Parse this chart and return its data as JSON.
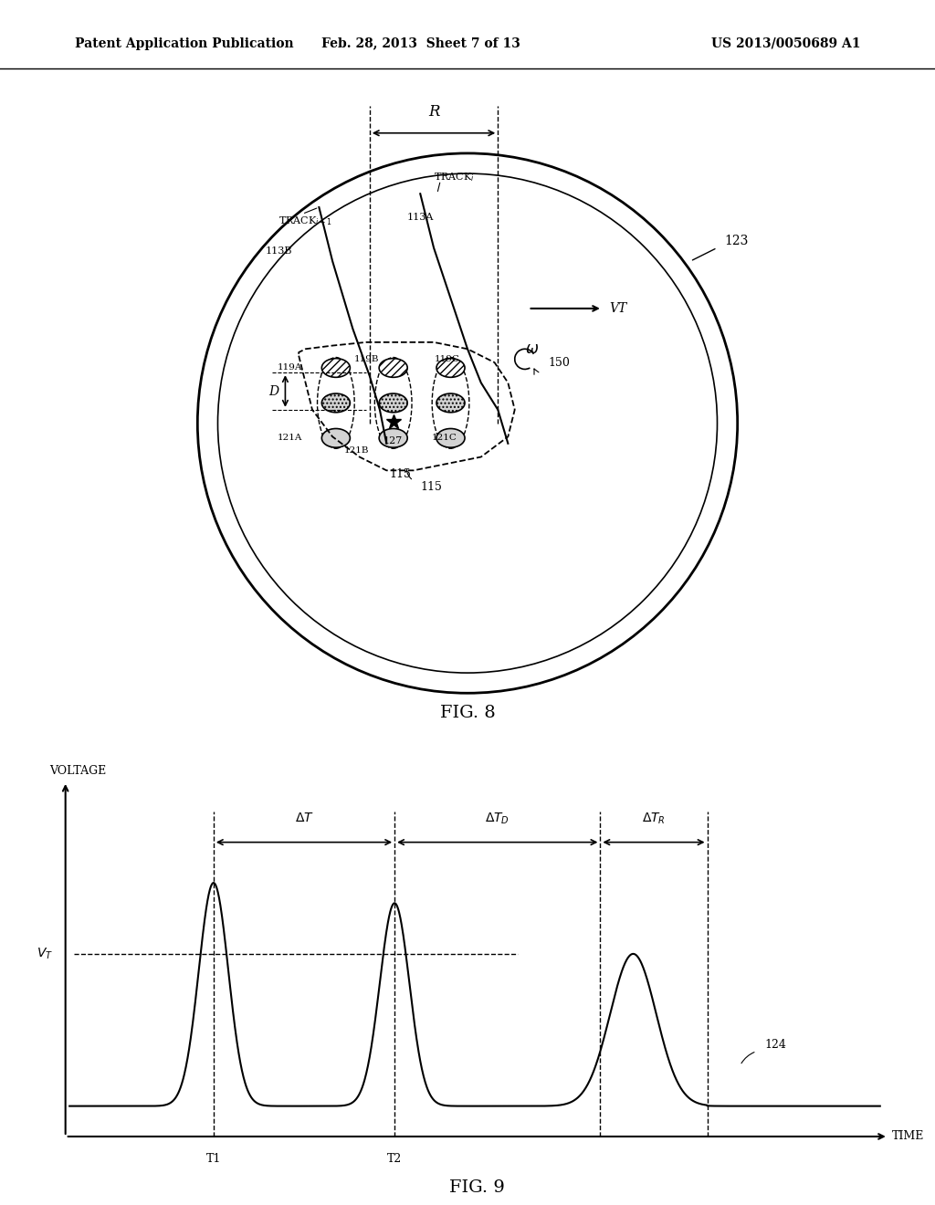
{
  "header_left": "Patent Application Publication",
  "header_mid": "Feb. 28, 2013  Sheet 7 of 13",
  "header_right": "US 2013/0050689 A1",
  "fig8_label": "FIG. 8",
  "fig9_label": "FIG. 9",
  "background_color": "#ffffff",
  "line_color": "#000000"
}
